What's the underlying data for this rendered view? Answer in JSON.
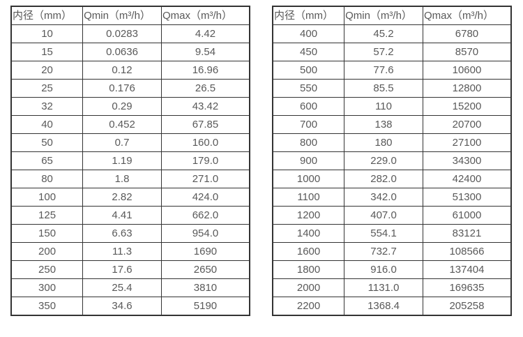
{
  "colors": {
    "border": "#333333",
    "text": "#595959",
    "background": "#ffffff"
  },
  "tables": [
    {
      "name": "flow-table-small-diameters",
      "headers": [
        "内径（mm）",
        "Qmin（m³/h）",
        "Qmax（m³/h）"
      ],
      "rows": [
        [
          "10",
          "0.0283",
          "4.42"
        ],
        [
          "15",
          "0.0636",
          "9.54"
        ],
        [
          "20",
          "0.12",
          "16.96"
        ],
        [
          "25",
          "0.176",
          "26.5"
        ],
        [
          "32",
          "0.29",
          "43.42"
        ],
        [
          "40",
          "0.452",
          "67.85"
        ],
        [
          "50",
          "0.7",
          "160.0"
        ],
        [
          "65",
          "1.19",
          "179.0"
        ],
        [
          "80",
          "1.8",
          "271.0"
        ],
        [
          "100",
          "2.82",
          "424.0"
        ],
        [
          "125",
          "4.41",
          "662.0"
        ],
        [
          "150",
          "6.63",
          "954.0"
        ],
        [
          "200",
          "11.3",
          "1690"
        ],
        [
          "250",
          "17.6",
          "2650"
        ],
        [
          "300",
          "25.4",
          "3810"
        ],
        [
          "350",
          "34.6",
          "5190"
        ]
      ]
    },
    {
      "name": "flow-table-large-diameters",
      "headers": [
        "内径（mm）",
        "Qmin（m³/h）",
        "Qmax（m³/h）"
      ],
      "rows": [
        [
          "400",
          "45.2",
          "6780"
        ],
        [
          "450",
          "57.2",
          "8570"
        ],
        [
          "500",
          "77.6",
          "10600"
        ],
        [
          "550",
          "85.5",
          "12800"
        ],
        [
          "600",
          "110",
          "15200"
        ],
        [
          "700",
          "138",
          "20700"
        ],
        [
          "800",
          "180",
          "27100"
        ],
        [
          "900",
          "229.0",
          "34300"
        ],
        [
          "1000",
          "282.0",
          "42400"
        ],
        [
          "1100",
          "342.0",
          "51300"
        ],
        [
          "1200",
          "407.0",
          "61000"
        ],
        [
          "1400",
          "554.1",
          "83121"
        ],
        [
          "1600",
          "732.7",
          "108566"
        ],
        [
          "1800",
          "916.0",
          "137404"
        ],
        [
          "2000",
          "1131.0",
          "169635"
        ],
        [
          "2200",
          "1368.4",
          "205258"
        ]
      ]
    }
  ]
}
